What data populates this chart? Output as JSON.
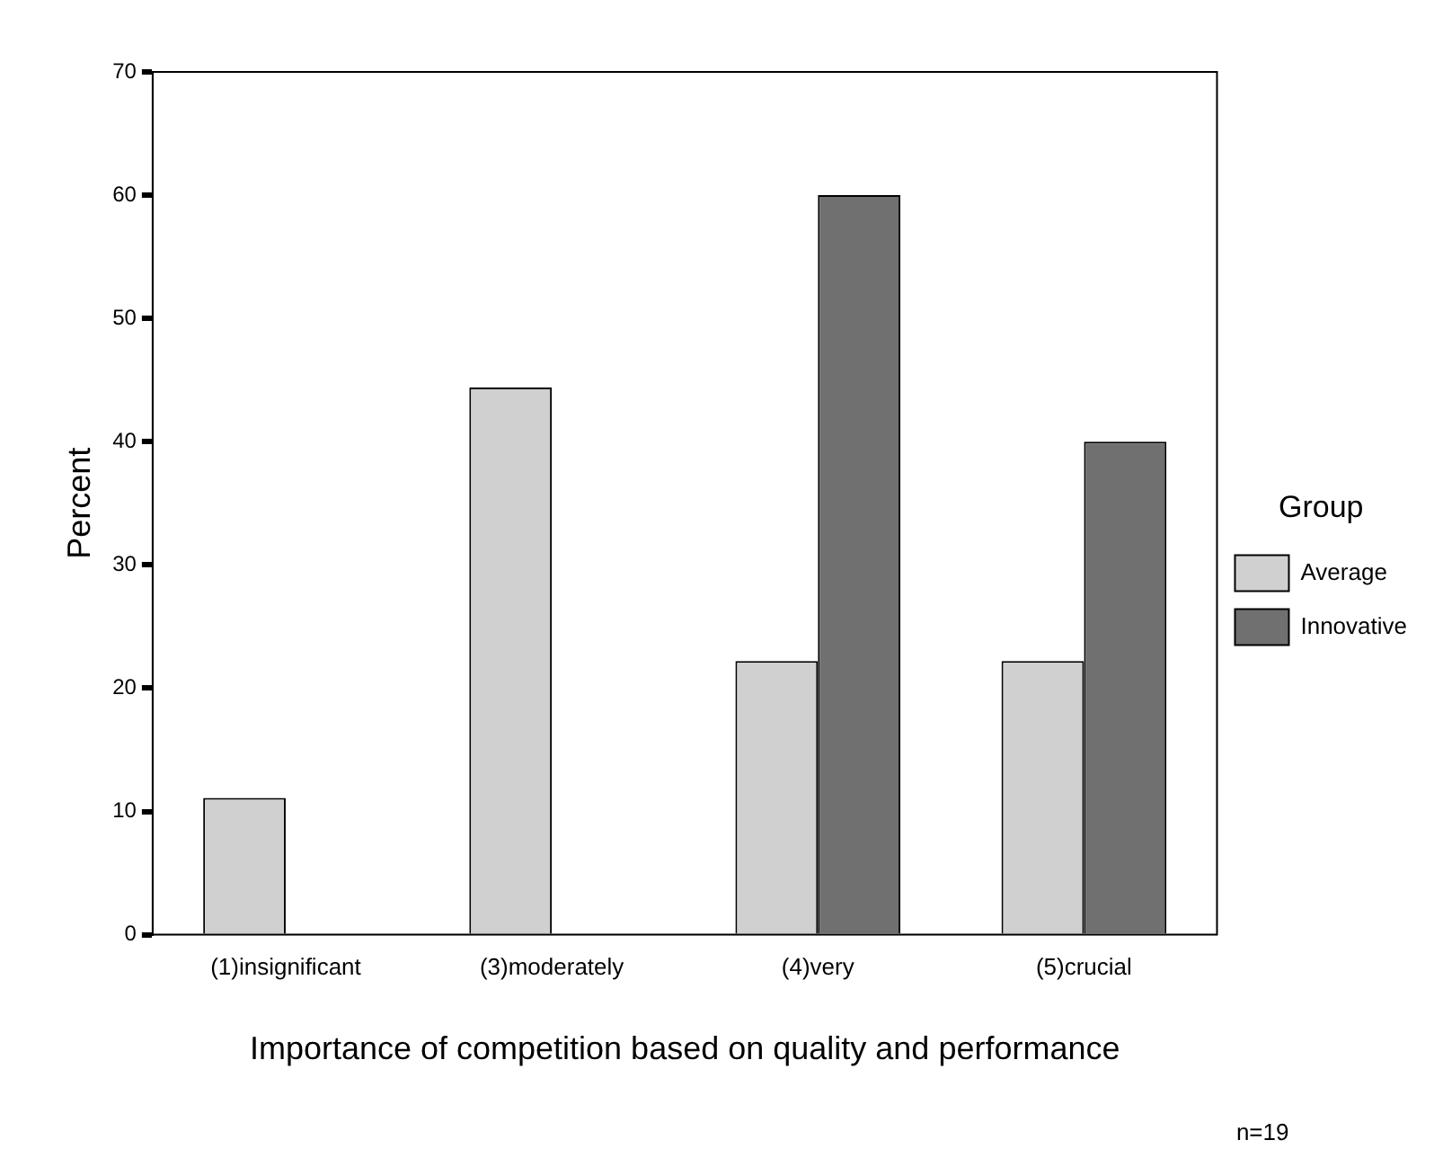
{
  "chart_data": {
    "type": "bar",
    "xlabel": "Importance of competition based on quality and performance",
    "ylabel": "Percent",
    "legend_title": "Group",
    "categories": [
      "(1)insignificant",
      "(3)moderately",
      "(4)very",
      "(5)crucial"
    ],
    "series": [
      {
        "name": "Average",
        "color": "#d0d0d0",
        "values": [
          11.1,
          44.4,
          22.2,
          22.2
        ]
      },
      {
        "name": "Innovative",
        "color": "#707070",
        "values": [
          0,
          0,
          60,
          40
        ]
      }
    ],
    "ylim": [
      0,
      70
    ],
    "yticks": [
      0,
      10,
      20,
      30,
      40,
      50,
      60,
      70
    ],
    "grid": false,
    "legend": "right",
    "annotations": [
      "n=19"
    ]
  }
}
